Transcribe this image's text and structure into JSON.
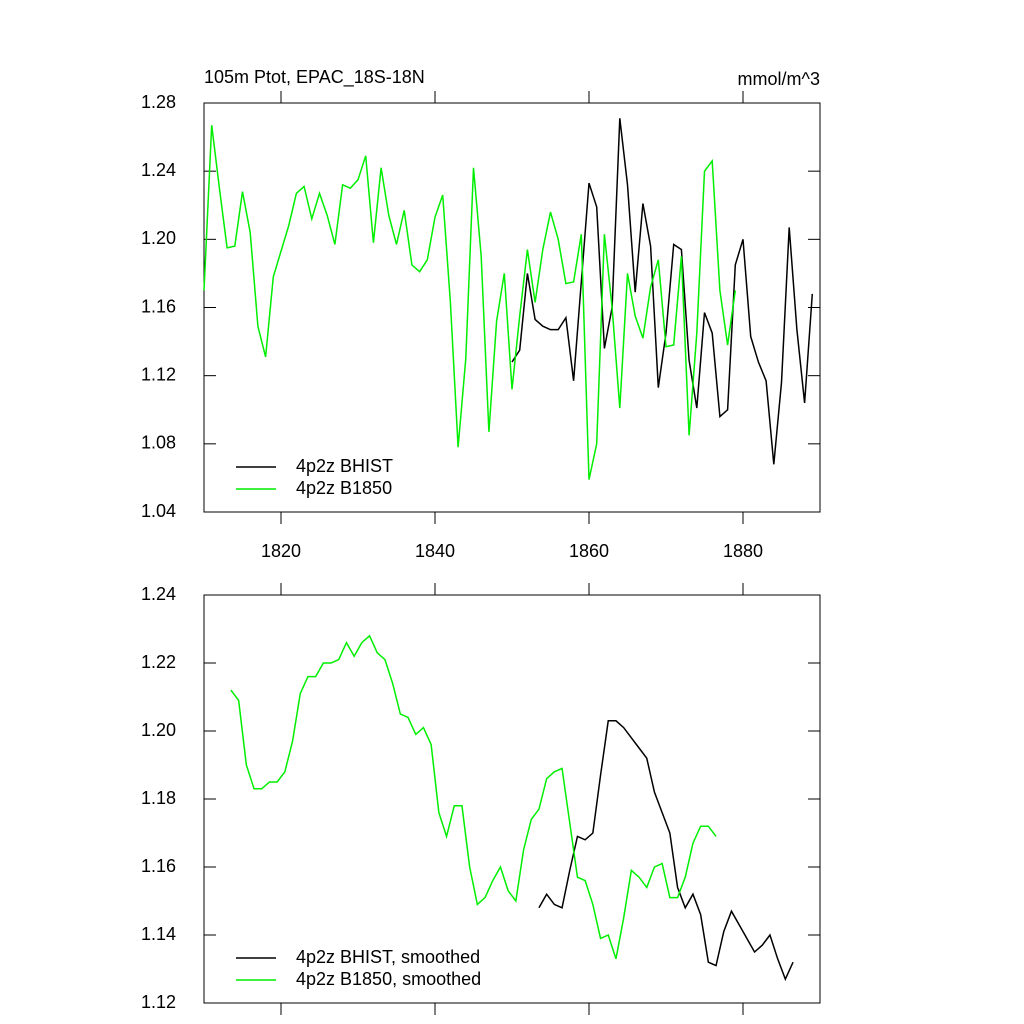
{
  "chart_data": [
    {
      "type": "line",
      "title": "105m Ptot, EPAC_18S-18N",
      "units": "mmol/m^3",
      "xlim": [
        1810,
        1890
      ],
      "xticks": [
        1820,
        1840,
        1860,
        1880
      ],
      "show_xtick_labels": true,
      "ylim": [
        1.04,
        1.28
      ],
      "yticks": [
        1.04,
        1.08,
        1.12,
        1.16,
        {
          "value": 1.2,
          "label": "1.20"
        },
        1.24,
        1.28
      ],
      "series": [
        {
          "name": "4p2z BHIST",
          "color": "#000000",
          "x": [
            1850,
            1851,
            1852,
            1853,
            1854,
            1855,
            1856,
            1857,
            1858,
            1859,
            1860,
            1861,
            1862,
            1863,
            1864,
            1865,
            1866,
            1867,
            1868,
            1869,
            1870,
            1871,
            1872,
            1873,
            1874,
            1875,
            1876,
            1877,
            1878,
            1879,
            1880,
            1881,
            1882,
            1883,
            1884,
            1885,
            1886,
            1887,
            1888,
            1889
          ],
          "values": [
            1.128,
            1.135,
            1.18,
            1.153,
            1.149,
            1.147,
            1.147,
            1.154,
            1.117,
            1.175,
            1.233,
            1.219,
            1.136,
            1.16,
            1.271,
            1.232,
            1.169,
            1.221,
            1.196,
            1.113,
            1.145,
            1.197,
            1.194,
            1.129,
            1.101,
            1.157,
            1.145,
            1.096,
            1.1,
            1.185,
            1.2,
            1.143,
            1.128,
            1.117,
            1.068,
            1.116,
            1.207,
            1.147,
            1.104,
            1.168
          ]
        },
        {
          "name": "4p2z B1850",
          "color": "#00ee00",
          "x": [
            1810,
            1811,
            1812,
            1813,
            1814,
            1815,
            1816,
            1817,
            1818,
            1819,
            1820,
            1821,
            1822,
            1823,
            1824,
            1825,
            1826,
            1827,
            1828,
            1829,
            1830,
            1831,
            1832,
            1833,
            1834,
            1835,
            1836,
            1837,
            1838,
            1839,
            1840,
            1841,
            1842,
            1843,
            1844,
            1845,
            1846,
            1847,
            1848,
            1849,
            1850,
            1851,
            1852,
            1853,
            1854,
            1855,
            1856,
            1857,
            1858,
            1859,
            1860,
            1861,
            1862,
            1863,
            1864,
            1865,
            1866,
            1867,
            1868,
            1869,
            1870,
            1871,
            1872,
            1873,
            1874,
            1875,
            1876,
            1877,
            1878,
            1879
          ],
          "values": [
            1.17,
            1.267,
            1.23,
            1.195,
            1.196,
            1.228,
            1.204,
            1.149,
            1.131,
            1.178,
            1.193,
            1.208,
            1.227,
            1.231,
            1.212,
            1.227,
            1.214,
            1.197,
            1.232,
            1.23,
            1.235,
            1.249,
            1.198,
            1.242,
            1.214,
            1.197,
            1.217,
            1.185,
            1.181,
            1.188,
            1.213,
            1.226,
            1.163,
            1.078,
            1.13,
            1.242,
            1.19,
            1.087,
            1.152,
            1.18,
            1.112,
            1.155,
            1.194,
            1.163,
            1.194,
            1.216,
            1.2,
            1.174,
            1.175,
            1.203,
            1.059,
            1.08,
            1.203,
            1.16,
            1.101,
            1.18,
            1.155,
            1.142,
            1.172,
            1.188,
            1.137,
            1.138,
            1.19,
            1.085,
            1.145,
            1.24,
            1.246,
            1.17,
            1.138,
            1.17
          ]
        }
      ]
    },
    {
      "type": "line",
      "xlim": [
        1810,
        1890
      ],
      "xticks": [
        1820,
        1840,
        1860,
        1880
      ],
      "show_xtick_labels": false,
      "ylim": [
        1.12,
        1.24
      ],
      "yticks": [
        1.12,
        1.14,
        1.16,
        1.18,
        {
          "value": 1.2,
          "label": "1.20"
        },
        1.22,
        1.24
      ],
      "series": [
        {
          "name": "4p2z BHIST, smoothed",
          "color": "#000000",
          "x": [
            1853.5,
            1854.5,
            1855.5,
            1856.5,
            1857.5,
            1858.5,
            1859.5,
            1860.5,
            1861.5,
            1862.5,
            1863.5,
            1864.5,
            1865.5,
            1866.5,
            1867.5,
            1868.5,
            1869.5,
            1870.5,
            1871.5,
            1872.5,
            1873.5,
            1874.5,
            1875.5,
            1876.5,
            1877.5,
            1878.5,
            1879.5,
            1880.5,
            1881.5,
            1882.5,
            1883.5,
            1884.5,
            1885.5,
            1886.5
          ],
          "values": [
            1.148,
            1.152,
            1.149,
            1.148,
            1.159,
            1.169,
            1.168,
            1.17,
            1.187,
            1.203,
            1.203,
            1.201,
            1.198,
            1.195,
            1.192,
            1.182,
            1.176,
            1.17,
            1.154,
            1.148,
            1.152,
            1.146,
            1.132,
            1.131,
            1.141,
            1.147,
            1.143,
            1.139,
            1.135,
            1.137,
            1.14,
            1.133,
            1.127,
            1.132
          ]
        },
        {
          "name": "4p2z B1850, smoothed",
          "color": "#00ee00",
          "x": [
            1813.5,
            1814.5,
            1815.5,
            1816.5,
            1817.5,
            1818.5,
            1819.5,
            1820.5,
            1821.5,
            1822.5,
            1823.5,
            1824.5,
            1825.5,
            1826.5,
            1827.5,
            1828.5,
            1829.5,
            1830.5,
            1831.5,
            1832.5,
            1833.5,
            1834.5,
            1835.5,
            1836.5,
            1837.5,
            1838.5,
            1839.5,
            1840.5,
            1841.5,
            1842.5,
            1843.5,
            1844.5,
            1845.5,
            1846.5,
            1847.5,
            1848.5,
            1849.5,
            1850.5,
            1851.5,
            1852.5,
            1853.5,
            1854.5,
            1855.5,
            1856.5,
            1857.5,
            1858.5,
            1859.5,
            1860.5,
            1861.5,
            1862.5,
            1863.5,
            1864.5,
            1865.5,
            1866.5,
            1867.5,
            1868.5,
            1869.5,
            1870.5,
            1871.5,
            1872.5,
            1873.5,
            1874.5,
            1875.5,
            1876.5
          ],
          "values": [
            1.212,
            1.209,
            1.19,
            1.183,
            1.183,
            1.185,
            1.185,
            1.188,
            1.197,
            1.211,
            1.216,
            1.216,
            1.22,
            1.22,
            1.221,
            1.226,
            1.222,
            1.226,
            1.228,
            1.223,
            1.221,
            1.214,
            1.205,
            1.204,
            1.199,
            1.201,
            1.196,
            1.176,
            1.169,
            1.178,
            1.178,
            1.16,
            1.149,
            1.151,
            1.156,
            1.16,
            1.153,
            1.15,
            1.165,
            1.174,
            1.177,
            1.186,
            1.188,
            1.189,
            1.173,
            1.157,
            1.156,
            1.149,
            1.139,
            1.14,
            1.133,
            1.145,
            1.159,
            1.157,
            1.154,
            1.16,
            1.161,
            1.151,
            1.151,
            1.157,
            1.167,
            1.172,
            1.172,
            1.169
          ]
        }
      ]
    }
  ]
}
